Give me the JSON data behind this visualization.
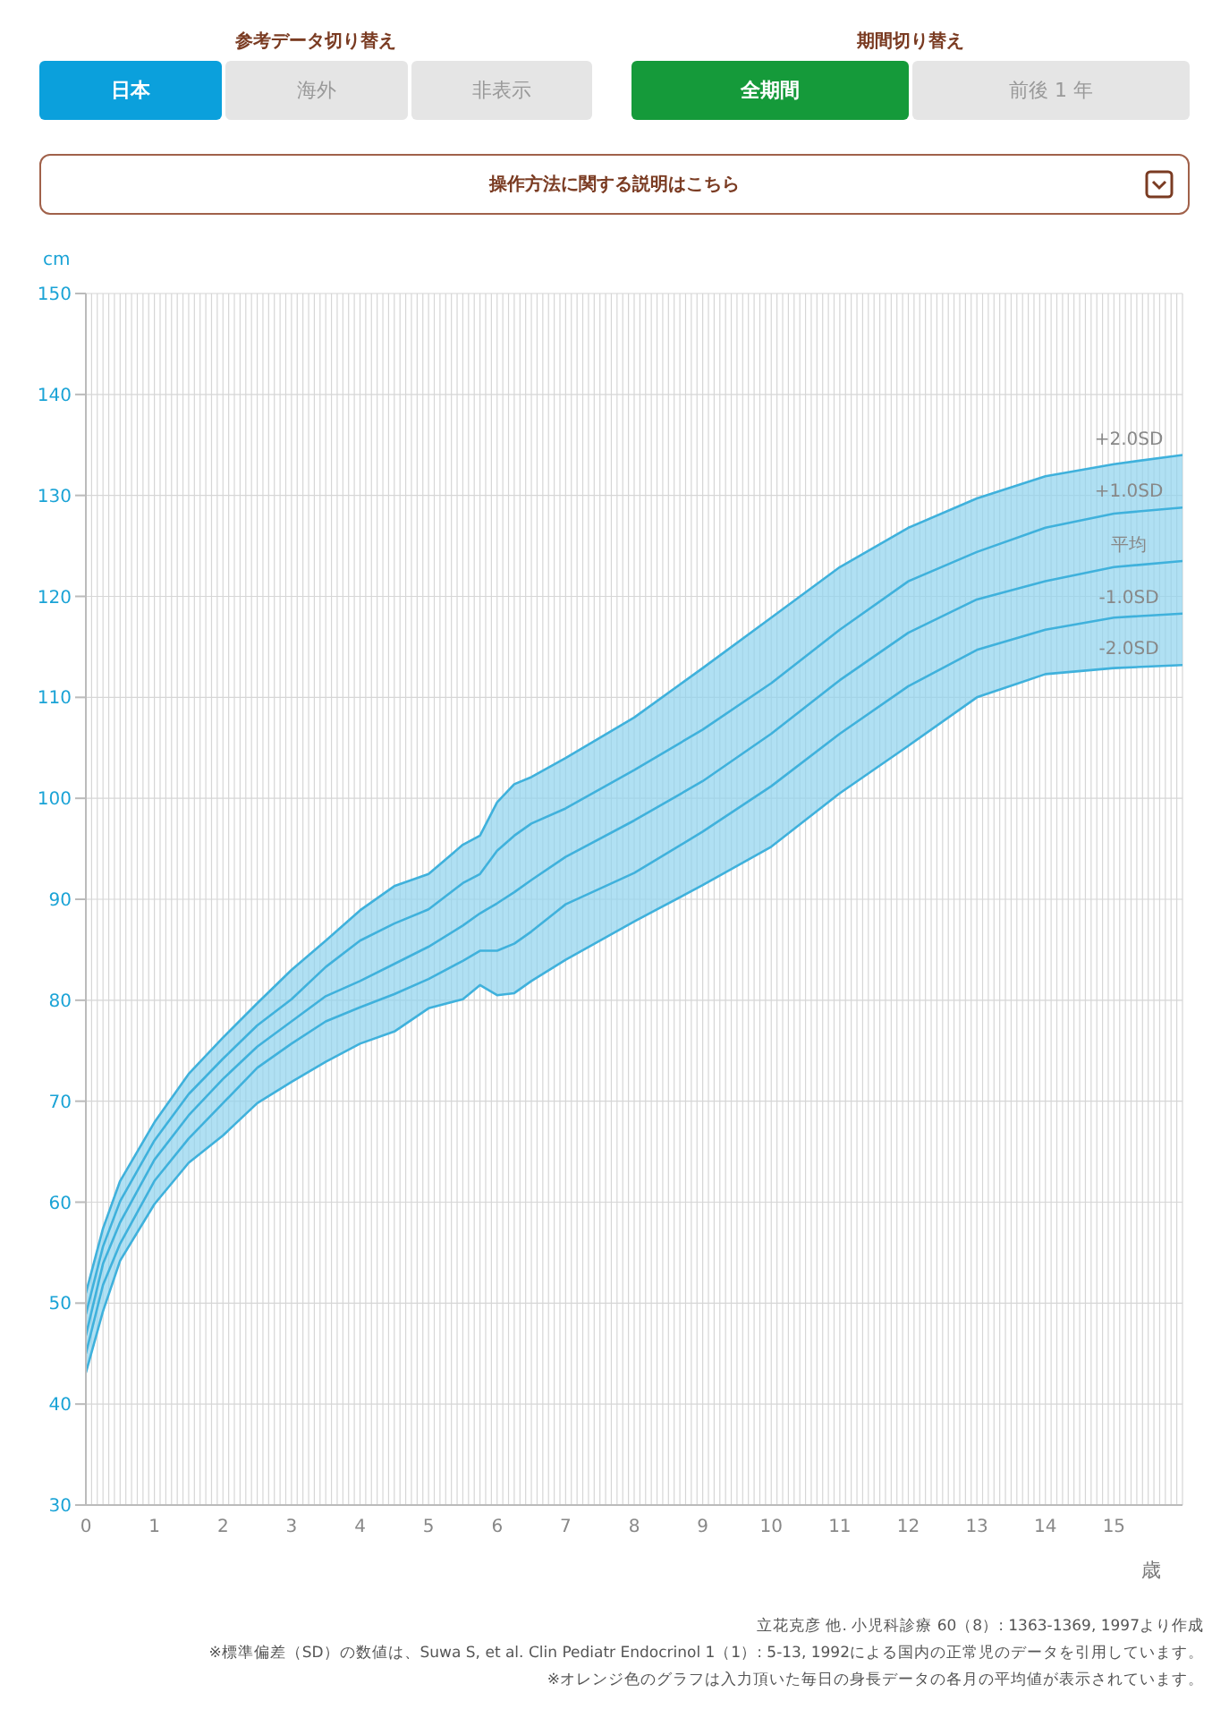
{
  "chart_data": {
    "type": "line",
    "xlabel": "歳",
    "ylabel": "cm",
    "annotations": [
      "参考データ切り替え",
      "日本",
      "海外",
      "非表示",
      "期間切り替え",
      "全期間",
      "前後 1 年",
      "操作方法に関する説明はこちら",
      "立花克彦 他. 小児科診療 60（8）: 1363-1369, 1997より作成",
      "※標準偏差（SD）の数値は、Suwa S, et al. Clin Pediatr Endocrinol 1（1）: 5-13, 1992による国内の正常児のデータを引用しています。",
      "※オレンジ色のグラフは入力頂いた毎日の身長データの各月の平均値が表示されています。"
    ],
    "x": [
      0,
      0.25,
      0.5,
      1,
      1.5,
      2,
      2.5,
      3,
      3.5,
      4,
      4.5,
      5,
      5.5,
      5.75,
      6,
      6.25,
      6.5,
      7,
      8,
      9,
      10,
      11,
      12,
      13,
      14,
      15,
      16
    ],
    "series": [
      {
        "name": "+2.0SD",
        "color": "#3fb1dc",
        "values": [
          51.0,
          57.4,
          62.1,
          67.9,
          72.7,
          76.3,
          79.7,
          83.0,
          85.9,
          88.9,
          91.3,
          92.5,
          95.4,
          96.3,
          99.6,
          101.4,
          102.1,
          104.0,
          108.0,
          112.9,
          117.9,
          122.9,
          126.8,
          129.7,
          131.9,
          133.1,
          134.0
        ]
      },
      {
        "name": "+1.0SD",
        "color": "#3fb1dc",
        "values": [
          48.9,
          55.6,
          60.1,
          66.1,
          70.7,
          74.2,
          77.5,
          80.1,
          83.3,
          85.9,
          87.6,
          89.0,
          91.6,
          92.5,
          94.8,
          96.3,
          97.5,
          99.0,
          102.8,
          106.8,
          111.4,
          116.7,
          121.5,
          124.4,
          126.8,
          128.2,
          128.8
        ]
      },
      {
        "name": "平均",
        "color": "#3fb1dc",
        "values": [
          46.8,
          53.9,
          58.0,
          64.2,
          68.6,
          72.2,
          75.4,
          77.9,
          80.4,
          81.9,
          83.6,
          85.3,
          87.4,
          88.6,
          89.6,
          90.7,
          91.9,
          94.2,
          97.8,
          101.7,
          106.4,
          111.7,
          116.4,
          119.7,
          121.5,
          122.9,
          123.5
        ],
        "lower": [
          43.1,
          49.2,
          54.2,
          59.8,
          63.9,
          66.6,
          69.8,
          71.9,
          73.9,
          75.7,
          76.9,
          79.2,
          80.1,
          81.5,
          80.5,
          80.7,
          81.9,
          84.0,
          87.8,
          91.4,
          95.2,
          100.5,
          105.2,
          110.0,
          112.3,
          112.9,
          113.2
        ],
        "upper": [
          51.0,
          57.4,
          62.1,
          67.9,
          72.7,
          76.3,
          79.7,
          83.0,
          85.9,
          88.9,
          91.3,
          92.5,
          95.4,
          96.3,
          99.6,
          101.4,
          102.1,
          104.0,
          108.0,
          112.9,
          117.9,
          122.9,
          126.8,
          129.7,
          131.9,
          133.1,
          134.0
        ]
      },
      {
        "name": "-1.0SD",
        "color": "#3fb1dc",
        "values": [
          45.0,
          51.8,
          55.9,
          62.1,
          66.3,
          69.8,
          73.3,
          75.7,
          77.9,
          79.3,
          80.6,
          82.1,
          83.9,
          84.9,
          84.9,
          85.6,
          86.8,
          89.5,
          92.6,
          96.7,
          101.2,
          106.4,
          111.1,
          114.7,
          116.7,
          117.9,
          118.3
        ]
      },
      {
        "name": "-2.0SD",
        "color": "#3fb1dc",
        "values": [
          43.1,
          49.2,
          54.2,
          59.8,
          63.9,
          66.6,
          69.8,
          71.9,
          73.9,
          75.7,
          76.9,
          79.2,
          80.1,
          81.5,
          80.5,
          80.7,
          81.9,
          84.0,
          87.8,
          91.4,
          95.2,
          100.5,
          105.2,
          110.0,
          112.3,
          112.9,
          113.2
        ]
      }
    ],
    "xlim": [
      0,
      16
    ],
    "xticks": [
      0,
      1,
      2,
      3,
      4,
      5,
      6,
      7,
      8,
      9,
      10,
      11,
      12,
      13,
      14,
      15
    ],
    "ylim": [
      30,
      150
    ],
    "yticks": [
      30,
      40,
      50,
      60,
      70,
      80,
      90,
      100,
      110,
      120,
      130,
      140,
      150
    ],
    "grid": true,
    "marker": "none",
    "line_style": "solid"
  }
}
